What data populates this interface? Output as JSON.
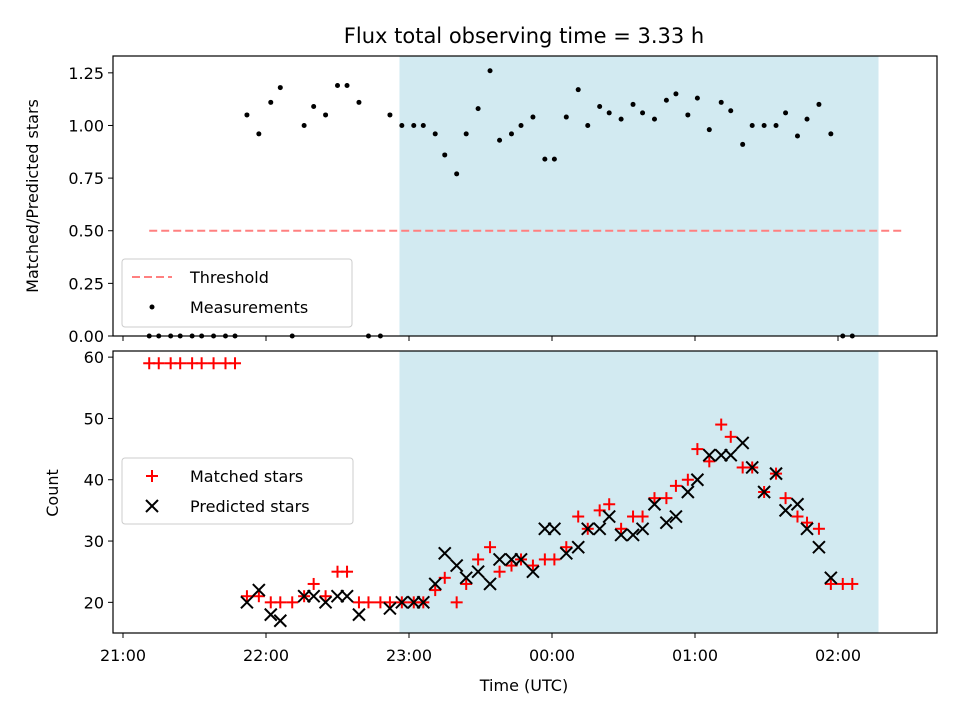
{
  "chart_data": {
    "title": "Flux total observing time = 3.33 h",
    "xlabel": "Time (UTC)",
    "x_ticks": [
      "21:00",
      "22:00",
      "23:00",
      "00:00",
      "01:00",
      "02:00"
    ],
    "shaded_interval": {
      "start": "22:56",
      "end": "02:17",
      "color": "#add8e6"
    },
    "top": {
      "type": "scatter",
      "ylabel": "Matched/Predicted stars",
      "ylim": [
        0,
        1.33
      ],
      "y_ticks": [
        "0.00",
        "0.25",
        "0.50",
        "0.75",
        "1.00",
        "1.25"
      ],
      "legend": [
        "Threshold",
        "Measurements"
      ],
      "legend_position": "lower-left",
      "threshold": {
        "name": "Threshold",
        "value": 0.5,
        "x_start": "21:11",
        "x_end": "02:28",
        "color": "#ff8080"
      },
      "measurements": {
        "name": "Measurements",
        "color": "#000000",
        "points": [
          [
            "21:11",
            0
          ],
          [
            "21:15",
            0
          ],
          [
            "21:20",
            0
          ],
          [
            "21:24",
            0
          ],
          [
            "21:29",
            0
          ],
          [
            "21:33",
            0
          ],
          [
            "21:38",
            0
          ],
          [
            "21:43",
            0
          ],
          [
            "21:47",
            0
          ],
          [
            "21:52",
            1.05
          ],
          [
            "21:57",
            0.96
          ],
          [
            "22:02",
            1.11
          ],
          [
            "22:06",
            1.18
          ],
          [
            "22:11",
            0
          ],
          [
            "22:16",
            1.0
          ],
          [
            "22:20",
            1.09
          ],
          [
            "22:25",
            1.05
          ],
          [
            "22:30",
            1.19
          ],
          [
            "22:34",
            1.19
          ],
          [
            "22:39",
            1.11
          ],
          [
            "22:43",
            0
          ],
          [
            "22:48",
            0
          ],
          [
            "22:52",
            1.05
          ],
          [
            "22:57",
            1.0
          ],
          [
            "23:02",
            1.0
          ],
          [
            "23:06",
            1.0
          ],
          [
            "23:11",
            0.96
          ],
          [
            "23:15",
            0.86
          ],
          [
            "23:20",
            0.77
          ],
          [
            "23:24",
            0.96
          ],
          [
            "23:29",
            1.08
          ],
          [
            "23:34",
            1.26
          ],
          [
            "23:38",
            0.93
          ],
          [
            "23:43",
            0.96
          ],
          [
            "23:47",
            1.0
          ],
          [
            "23:52",
            1.04
          ],
          [
            "23:57",
            0.84
          ],
          [
            "00:01",
            0.84
          ],
          [
            "00:06",
            1.04
          ],
          [
            "00:11",
            1.17
          ],
          [
            "00:15",
            1.0
          ],
          [
            "00:20",
            1.09
          ],
          [
            "00:24",
            1.06
          ],
          [
            "00:29",
            1.03
          ],
          [
            "00:34",
            1.1
          ],
          [
            "00:38",
            1.06
          ],
          [
            "00:43",
            1.03
          ],
          [
            "00:48",
            1.12
          ],
          [
            "00:52",
            1.15
          ],
          [
            "00:57",
            1.05
          ],
          [
            "01:01",
            1.13
          ],
          [
            "01:06",
            0.98
          ],
          [
            "01:11",
            1.11
          ],
          [
            "01:15",
            1.07
          ],
          [
            "01:20",
            0.91
          ],
          [
            "01:24",
            1.0
          ],
          [
            "01:29",
            1.0
          ],
          [
            "01:34",
            1.0
          ],
          [
            "01:38",
            1.06
          ],
          [
            "01:43",
            0.95
          ],
          [
            "01:47",
            1.03
          ],
          [
            "01:52",
            1.1
          ],
          [
            "01:57",
            0.96
          ],
          [
            "02:02",
            0
          ],
          [
            "02:06",
            0
          ]
        ]
      }
    },
    "bottom": {
      "type": "scatter",
      "ylabel": "Count",
      "ylim": [
        15,
        61
      ],
      "y_ticks": [
        "20",
        "30",
        "40",
        "50",
        "60"
      ],
      "legend": [
        "Matched stars",
        "Predicted stars"
      ],
      "legend_position": "center-left",
      "series": [
        {
          "name": "Matched stars",
          "marker": "+",
          "color": "#ff0000",
          "points": [
            [
              "21:11",
              59
            ],
            [
              "21:15",
              59
            ],
            [
              "21:20",
              59
            ],
            [
              "21:24",
              59
            ],
            [
              "21:29",
              59
            ],
            [
              "21:33",
              59
            ],
            [
              "21:38",
              59
            ],
            [
              "21:43",
              59
            ],
            [
              "21:47",
              59
            ],
            [
              "21:52",
              21
            ],
            [
              "21:57",
              21
            ],
            [
              "22:02",
              20
            ],
            [
              "22:06",
              20
            ],
            [
              "22:11",
              20
            ],
            [
              "22:16",
              21
            ],
            [
              "22:20",
              23
            ],
            [
              "22:25",
              21
            ],
            [
              "22:30",
              25
            ],
            [
              "22:34",
              25
            ],
            [
              "22:39",
              20
            ],
            [
              "22:43",
              20
            ],
            [
              "22:48",
              20
            ],
            [
              "22:52",
              20
            ],
            [
              "22:57",
              20
            ],
            [
              "23:02",
              20
            ],
            [
              "23:06",
              20
            ],
            [
              "23:11",
              22
            ],
            [
              "23:15",
              24
            ],
            [
              "23:20",
              20
            ],
            [
              "23:24",
              23
            ],
            [
              "23:29",
              27
            ],
            [
              "23:34",
              29
            ],
            [
              "23:38",
              25
            ],
            [
              "23:43",
              26
            ],
            [
              "23:47",
              27
            ],
            [
              "23:52",
              26
            ],
            [
              "23:57",
              27
            ],
            [
              "00:01",
              27
            ],
            [
              "00:06",
              29
            ],
            [
              "00:11",
              34
            ],
            [
              "00:15",
              32
            ],
            [
              "00:20",
              35
            ],
            [
              "00:24",
              36
            ],
            [
              "00:29",
              32
            ],
            [
              "00:34",
              34
            ],
            [
              "00:38",
              34
            ],
            [
              "00:43",
              37
            ],
            [
              "00:48",
              37
            ],
            [
              "00:52",
              39
            ],
            [
              "00:57",
              40
            ],
            [
              "01:01",
              45
            ],
            [
              "01:06",
              43
            ],
            [
              "01:11",
              49
            ],
            [
              "01:15",
              47
            ],
            [
              "01:20",
              42
            ],
            [
              "01:24",
              42
            ],
            [
              "01:29",
              38
            ],
            [
              "01:34",
              41
            ],
            [
              "01:38",
              37
            ],
            [
              "01:43",
              34
            ],
            [
              "01:47",
              33
            ],
            [
              "01:52",
              32
            ],
            [
              "01:57",
              23
            ],
            [
              "02:02",
              23
            ],
            [
              "02:06",
              23
            ]
          ]
        },
        {
          "name": "Predicted stars",
          "marker": "x",
          "color": "#000000",
          "points": [
            [
              "21:52",
              20
            ],
            [
              "21:57",
              22
            ],
            [
              "22:02",
              18
            ],
            [
              "22:06",
              17
            ],
            [
              "22:16",
              21
            ],
            [
              "22:20",
              21
            ],
            [
              "22:25",
              20
            ],
            [
              "22:30",
              21
            ],
            [
              "22:34",
              21
            ],
            [
              "22:39",
              18
            ],
            [
              "22:52",
              19
            ],
            [
              "22:57",
              20
            ],
            [
              "23:02",
              20
            ],
            [
              "23:06",
              20
            ],
            [
              "23:11",
              23
            ],
            [
              "23:15",
              28
            ],
            [
              "23:20",
              26
            ],
            [
              "23:24",
              24
            ],
            [
              "23:29",
              25
            ],
            [
              "23:34",
              23
            ],
            [
              "23:38",
              27
            ],
            [
              "23:43",
              27
            ],
            [
              "23:47",
              27
            ],
            [
              "23:52",
              25
            ],
            [
              "23:57",
              32
            ],
            [
              "00:01",
              32
            ],
            [
              "00:06",
              28
            ],
            [
              "00:11",
              29
            ],
            [
              "00:15",
              32
            ],
            [
              "00:20",
              32
            ],
            [
              "00:24",
              34
            ],
            [
              "00:29",
              31
            ],
            [
              "00:34",
              31
            ],
            [
              "00:38",
              32
            ],
            [
              "00:43",
              36
            ],
            [
              "00:48",
              33
            ],
            [
              "00:52",
              34
            ],
            [
              "00:57",
              38
            ],
            [
              "01:01",
              40
            ],
            [
              "01:06",
              44
            ],
            [
              "01:11",
              44
            ],
            [
              "01:15",
              44
            ],
            [
              "01:20",
              46
            ],
            [
              "01:24",
              42
            ],
            [
              "01:29",
              38
            ],
            [
              "01:34",
              41
            ],
            [
              "01:38",
              35
            ],
            [
              "01:43",
              36
            ],
            [
              "01:47",
              32
            ],
            [
              "01:52",
              29
            ],
            [
              "01:57",
              24
            ]
          ]
        }
      ]
    }
  }
}
